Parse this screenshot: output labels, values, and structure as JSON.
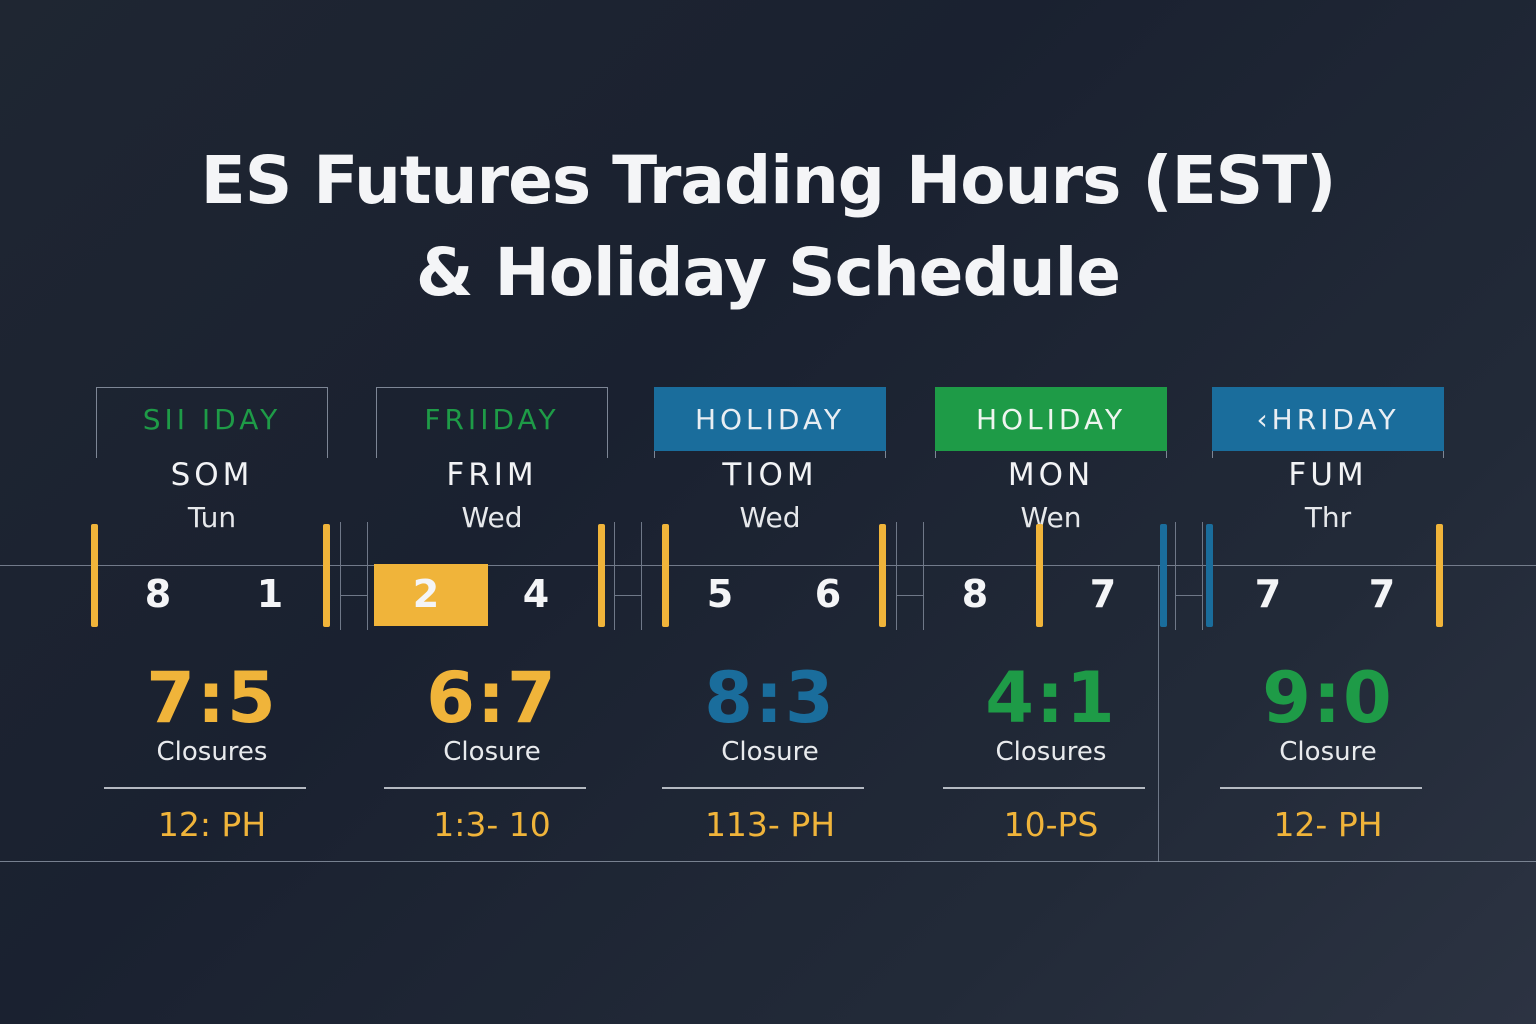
{
  "title": {
    "line1": "ES Futures Trading Hours (EST)",
    "line2": "& Holiday Schedule"
  },
  "colors": {
    "gold": "#f0b43a",
    "blue": "#1a6d9c",
    "green": "#1e9b47"
  },
  "cards": [
    {
      "header": "SII IDAY",
      "header_style": "plain",
      "header_color": "#1e9b47",
      "abbr": "SOM",
      "day": "Tun",
      "num_left": "8",
      "num_right": "1",
      "big": "7:5",
      "big_color": "#f0b43a",
      "closure": "Closures",
      "time": "12: PH"
    },
    {
      "header": "FRIIDAY",
      "header_style": "plain",
      "header_color": "#1e9b47",
      "abbr": "FRIM",
      "day": "Wed",
      "num_left": "2",
      "num_right": "4",
      "big": "6:7",
      "big_color": "#f0b43a",
      "closure": "Closure",
      "time": "1:3- 10"
    },
    {
      "header": "HOLIDAY",
      "header_style": "blue",
      "header_color": "#e9eef3",
      "abbr": "TIOM",
      "day": "Wed",
      "num_left": "5",
      "num_right": "6",
      "big": "8:3",
      "big_color": "#1a6d9c",
      "closure": "Closure",
      "time": "113- PH"
    },
    {
      "header": "HOLIDAY",
      "header_style": "green",
      "header_color": "#eef5ef",
      "abbr": "MON",
      "day": "Wen",
      "num_left": "8",
      "num_right": "7",
      "big": "4:1",
      "big_color": "#1e9b47",
      "closure": "Closures",
      "time": "10-PS"
    },
    {
      "header": "‹HRIDAY",
      "header_style": "blue",
      "header_color": "#e9eef3",
      "abbr": "FUM",
      "day": "Thr",
      "num_left": "7",
      "num_right": "7",
      "big": "9:0",
      "big_color": "#1e9b47",
      "closure": "Closure",
      "time": "12- PH"
    }
  ]
}
